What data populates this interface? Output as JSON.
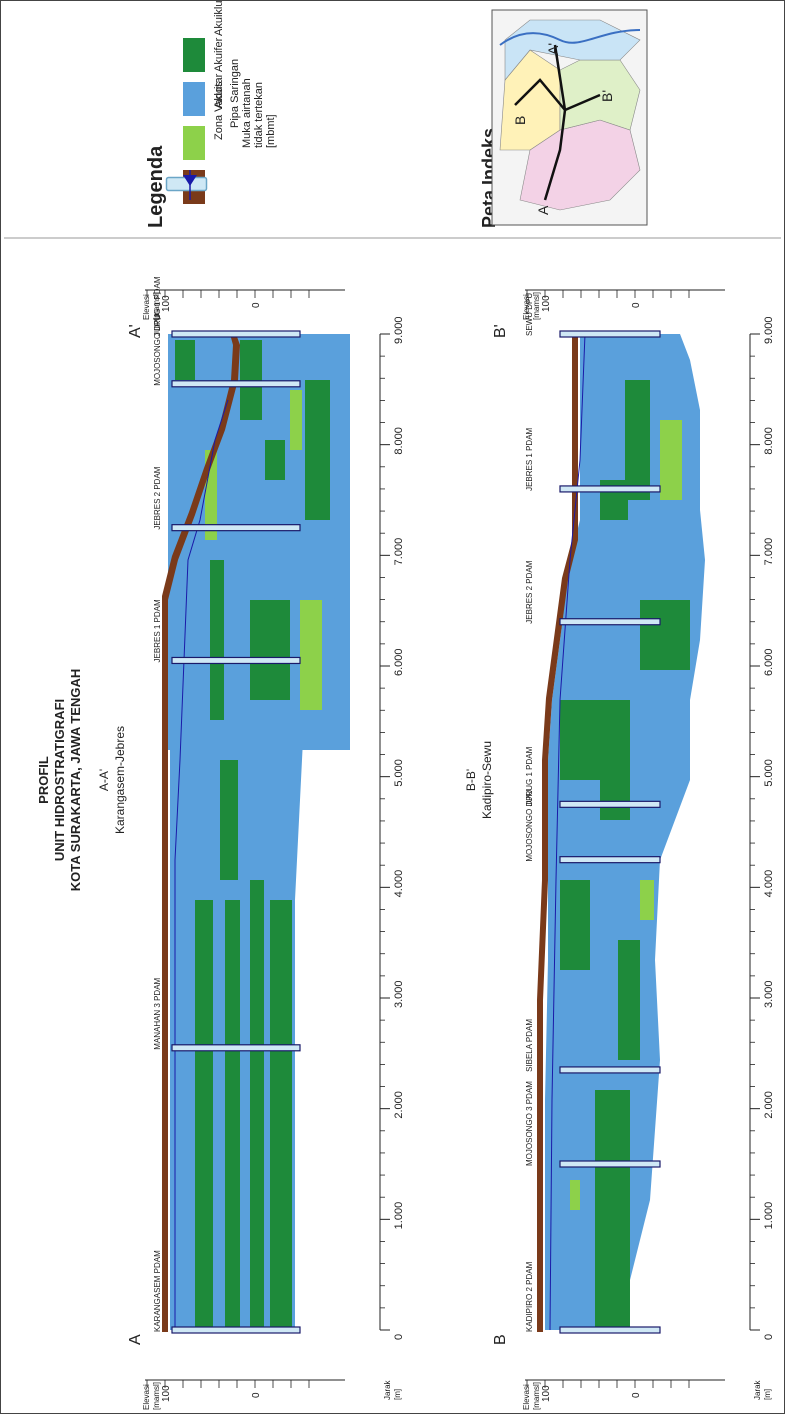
{
  "title": {
    "line1": "PROFIL",
    "line2": "UNIT HIDROSTRATIGRAFI",
    "line3": "KOTA SURAKARTA, JAWA TENGAH"
  },
  "section_a": {
    "code": "A-A'",
    "name": "Karangasem-Jebres",
    "start_label": "A",
    "end_label": "A'",
    "wells": [
      {
        "name": "KARANGASEM PDAM",
        "distance": 0
      },
      {
        "name": "MANAHAN 3 PDAM",
        "distance": 2550
      },
      {
        "name": "JEBRES 1 PDAM",
        "distance": 6050
      },
      {
        "name": "JEBRES 2 PDAM",
        "distance": 7250
      },
      {
        "name": "MOJOSONGO DPU",
        "distance": 8550
      },
      {
        "name": "JURUG 1 PDAM",
        "distance": 9000
      }
    ]
  },
  "section_b": {
    "code": "B-B'",
    "name": "Kadipiro-Sewu",
    "start_label": "B",
    "end_label": "B'",
    "wells": [
      {
        "name": "KADIPIRO 2 PDAM",
        "distance": 0
      },
      {
        "name": "MOJOSONGO 3 PDAM",
        "distance": 1500
      },
      {
        "name": "SIBELA PDAM",
        "distance": 2350
      },
      {
        "name": "MOJOSONGO DPU",
        "distance": 4250
      },
      {
        "name": "JURUG 1 PDAM",
        "distance": 4750
      },
      {
        "name": "JEBRES 2 PDAM",
        "distance": 6400
      },
      {
        "name": "JEBRES 1 PDAM",
        "distance": 7600
      },
      {
        "name": "SEWU DPU",
        "distance": 9000
      }
    ]
  },
  "axes": {
    "elevation_label_1": "Elevasi",
    "elevation_label_2": "[mamsl]",
    "elevation_ticks": [
      "100",
      "0"
    ],
    "distance_label_1": "Jarak",
    "distance_label_2": "[m]",
    "distance_ticks": [
      "0",
      "1.000",
      "2.000",
      "3.000",
      "4.000",
      "5.000",
      "6.000",
      "7.000",
      "8.000",
      "9.000"
    ]
  },
  "legend": {
    "title": "Legenda",
    "items": [
      {
        "label": "Zona Vados",
        "color": "#7a3a1a"
      },
      {
        "label": "Akuitar",
        "color": "#8dd14a"
      },
      {
        "label": "Akuifer",
        "color": "#5aa0dc"
      },
      {
        "label": "Akuiklud",
        "color": "#1e8a3a"
      },
      {
        "label": "Pipa Saringan",
        "color": "#cfe8f5"
      }
    ],
    "water_line1": "Muka airtanah",
    "water_line2": "tidak tertekan",
    "water_line3": "[mbmt]"
  },
  "index_map": {
    "title": "Peta Indeks",
    "point_a": "A",
    "point_a_prime": "A'",
    "point_b": "B",
    "point_b_prime": "B'"
  }
}
